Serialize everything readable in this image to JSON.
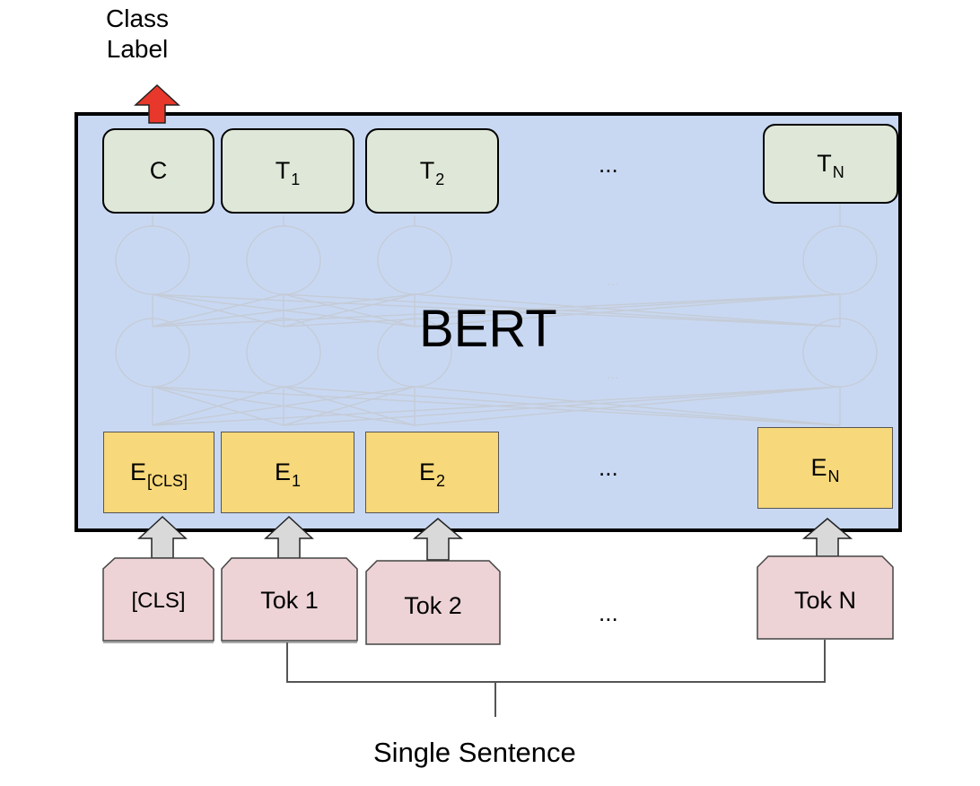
{
  "top_label": {
    "line1": "Class",
    "line2": "Label"
  },
  "model": {
    "name": "BERT"
  },
  "outputs": [
    {
      "main": "C",
      "sub": ""
    },
    {
      "main": "T",
      "sub": "1"
    },
    {
      "main": "T",
      "sub": "2"
    },
    {
      "main": "T",
      "sub": "N"
    }
  ],
  "embeddings": [
    {
      "main": "E",
      "sub": "[CLS]"
    },
    {
      "main": "E",
      "sub": "1"
    },
    {
      "main": "E",
      "sub": "2"
    },
    {
      "main": "E",
      "sub": "N"
    }
  ],
  "tokens": [
    {
      "text": "[CLS]"
    },
    {
      "text": "Tok 1"
    },
    {
      "text": "Tok 2"
    },
    {
      "text": "Tok N"
    }
  ],
  "ellipsis": "...",
  "bottom_label": "Single Sentence",
  "colors": {
    "frame_fill": "#c9d8f2",
    "output_fill": "#dfe8d8",
    "embedding_fill": "#f7d87a",
    "token_fill": "#edd3d6",
    "class_arrow": "#e8382b",
    "input_arrow": "#d9d9d9"
  }
}
